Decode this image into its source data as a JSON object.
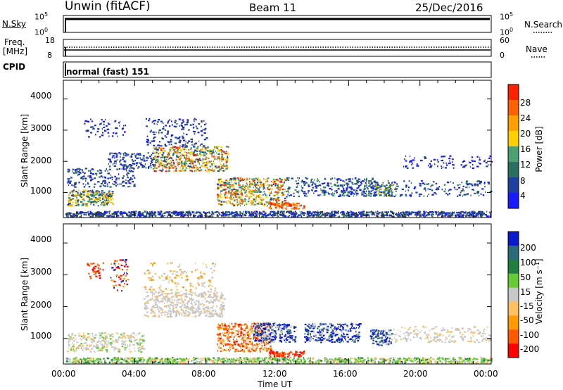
{
  "header": {
    "station": "Unwin (fitACF)",
    "beam": "Beam 11",
    "date": "25/Dec/2016"
  },
  "strip_panels": {
    "nsky": {
      "label": "N.Sky",
      "left_ticks": [
        "10^5",
        "10^0"
      ],
      "right_ticks": [
        "10^5",
        "10^0"
      ],
      "right_label": "N.Search"
    },
    "freq": {
      "label_line1": "Freq.",
      "label_line2": "[MHz]",
      "left_ticks": [
        "18",
        "8"
      ],
      "right_ticks": [
        "60",
        "0"
      ],
      "right_label": "Nave"
    },
    "cpid": {
      "label": "CPID",
      "text": "normal (fast) 151"
    }
  },
  "colors": {
    "power_scale": [
      "#1a1aff",
      "#1f3fa0",
      "#2a7060",
      "#4aa070",
      "#ffd000",
      "#ffa000",
      "#ff6000",
      "#ff2000"
    ],
    "velocity_scale": [
      "#ff0000",
      "#ff5a00",
      "#ff9a00",
      "#ffc060",
      "#c8c8c8",
      "#66cc33",
      "#1f7f3f",
      "#2a6a7a",
      "#0a1acc"
    ]
  },
  "chart_data": [
    {
      "type": "heatmap",
      "name": "power",
      "ylabel": "Slant Range [km]",
      "yticks": [
        "1000",
        "2000",
        "3000",
        "4000"
      ],
      "ylim": [
        200,
        4600
      ],
      "xlim": [
        0,
        24
      ],
      "colorbar_label": "Power [dB]",
      "colorbar_ticks": [
        "4",
        "8",
        "12",
        "16",
        "20",
        "24",
        "28"
      ],
      "grid": false
    },
    {
      "type": "heatmap",
      "name": "velocity",
      "ylabel": "Slant Range [km]",
      "yticks": [
        "1000",
        "2000",
        "3000",
        "4000"
      ],
      "ylim": [
        200,
        4600
      ],
      "xlim": [
        0,
        24
      ],
      "xlabel": "Time UT",
      "xticks": [
        "00:00",
        "04:00",
        "08:00",
        "12:00",
        "16:00",
        "20:00",
        "00:00"
      ],
      "colorbar_label": "Velocity [m s⁻¹]",
      "colorbar_ticks": [
        "200",
        "100",
        "50",
        "15",
        "-15",
        "-50",
        "-100",
        "-200"
      ],
      "grid": false
    }
  ]
}
